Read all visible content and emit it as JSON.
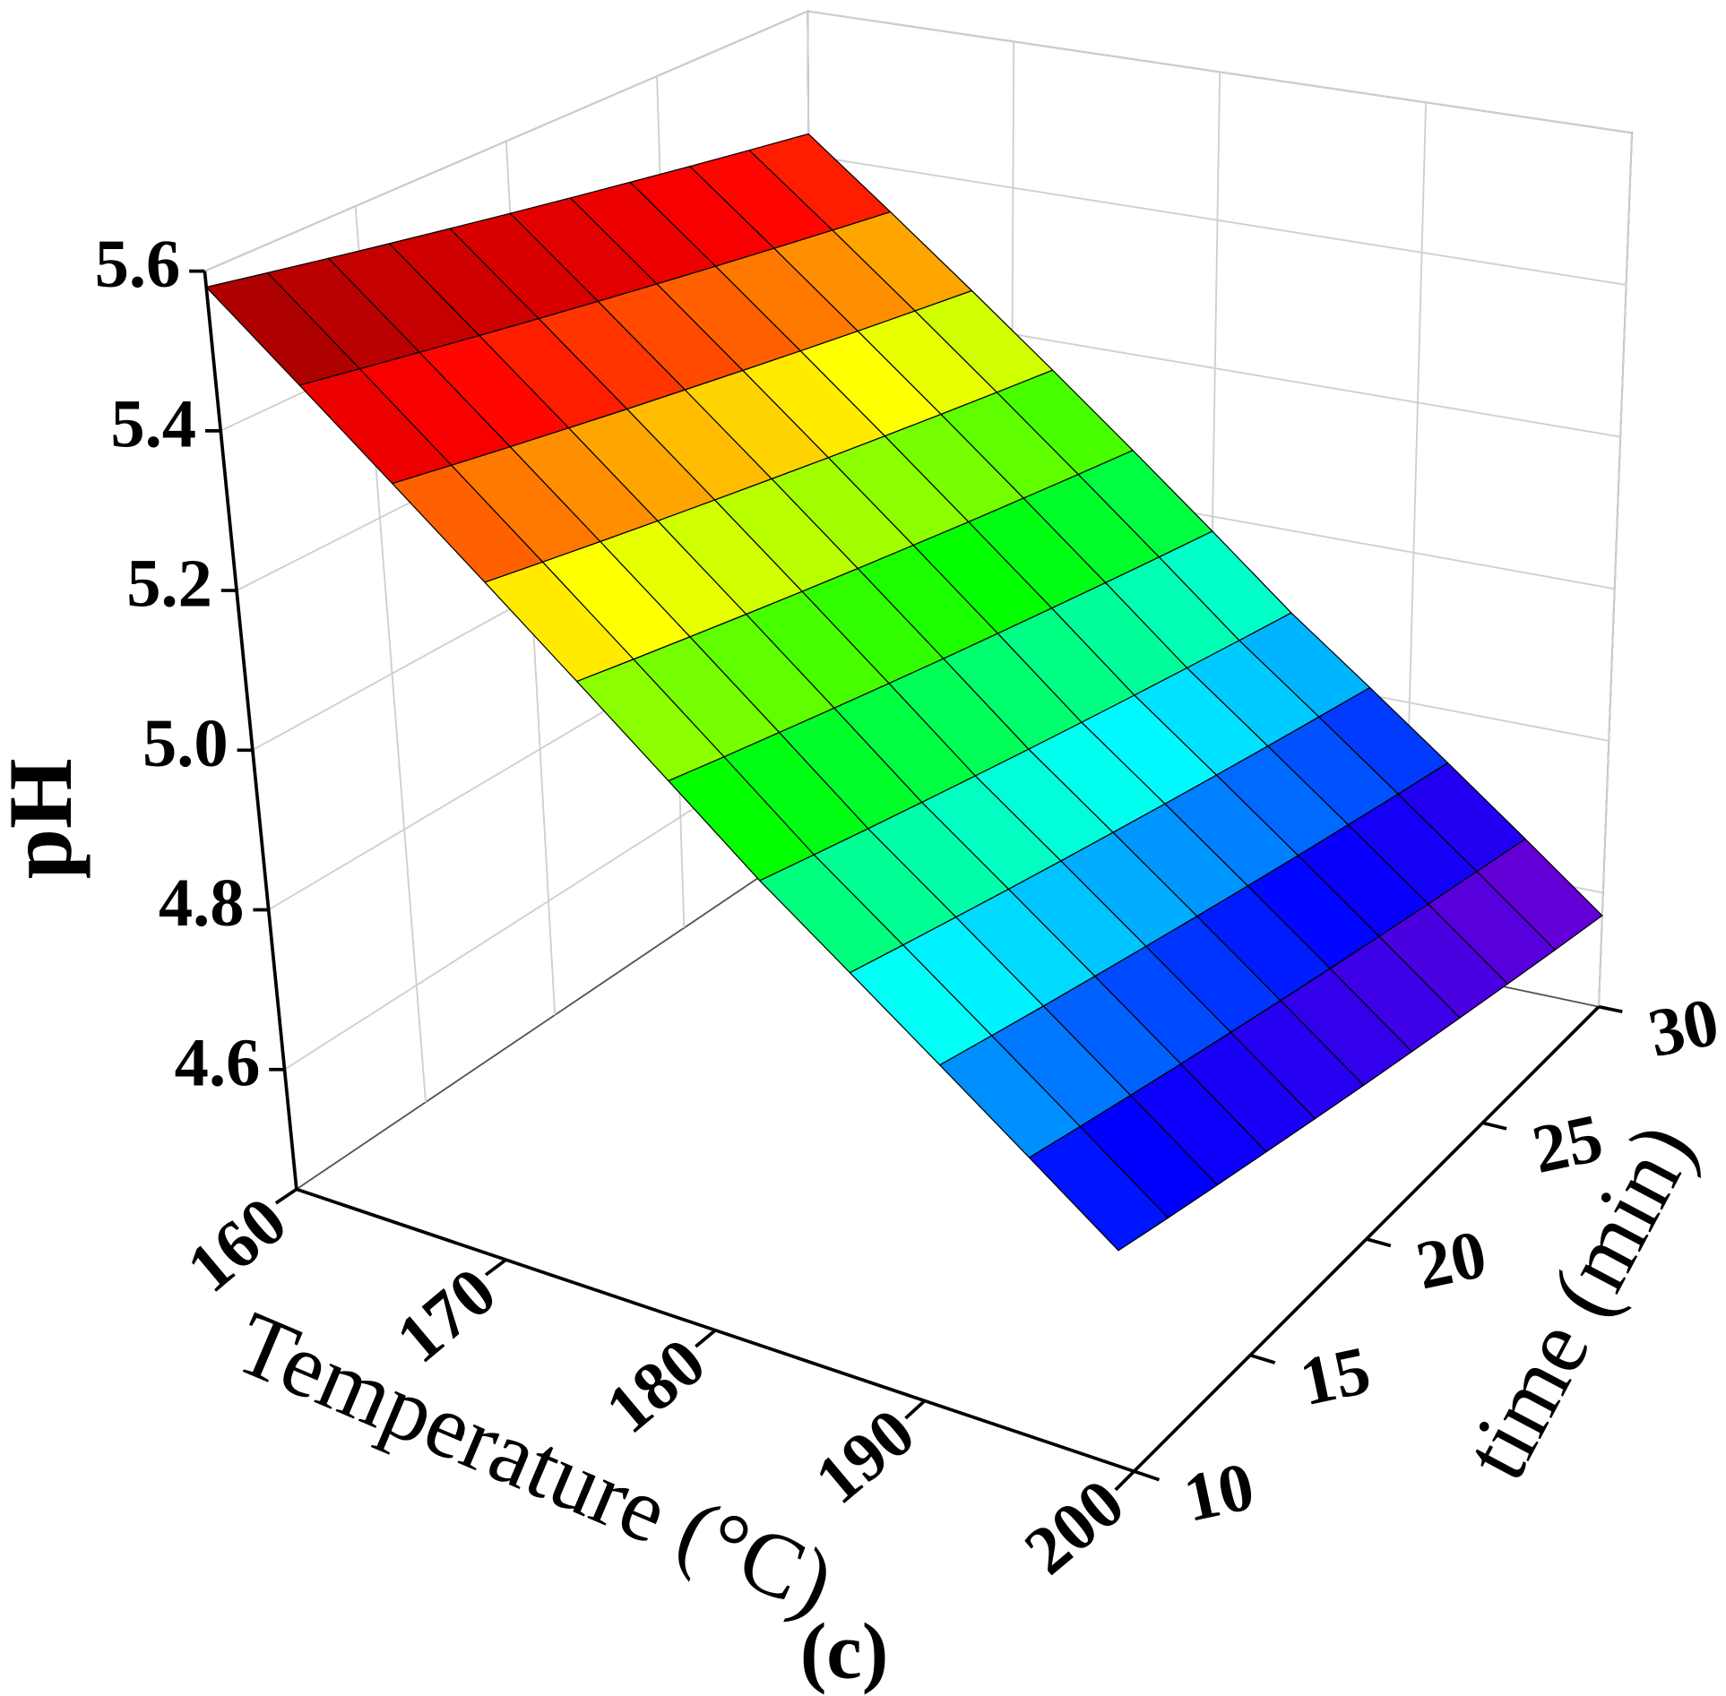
{
  "chart_data": {
    "type": "surface",
    "xlabel": "Temperature (°C)",
    "ylabel": "time (min)",
    "zlabel": "pH",
    "caption": "(c)",
    "x": [
      160,
      164,
      168,
      172,
      176,
      180,
      184,
      188,
      192,
      196,
      200
    ],
    "y": [
      10,
      12,
      14,
      16,
      18,
      20,
      22,
      24,
      26,
      28,
      30
    ],
    "z": [
      [
        5.58,
        5.565,
        5.55,
        5.535,
        5.52,
        5.505,
        5.49,
        5.475,
        5.46,
        5.445,
        5.43
      ],
      [
        5.49,
        5.475,
        5.46,
        5.445,
        5.43,
        5.415,
        5.4,
        5.385,
        5.37,
        5.355,
        5.34
      ],
      [
        5.4,
        5.385,
        5.37,
        5.355,
        5.34,
        5.325,
        5.31,
        5.295,
        5.28,
        5.265,
        5.25
      ],
      [
        5.31,
        5.295,
        5.28,
        5.265,
        5.25,
        5.235,
        5.22,
        5.205,
        5.19,
        5.175,
        5.16
      ],
      [
        5.22,
        5.205,
        5.19,
        5.175,
        5.16,
        5.145,
        5.13,
        5.115,
        5.1,
        5.085,
        5.07
      ],
      [
        5.13,
        5.115,
        5.1,
        5.085,
        5.07,
        5.055,
        5.04,
        5.025,
        5.01,
        4.995,
        4.98
      ],
      [
        5.04,
        5.025,
        5.01,
        4.995,
        4.98,
        4.965,
        4.95,
        4.935,
        4.92,
        4.905,
        4.89
      ],
      [
        4.96,
        4.945,
        4.93,
        4.915,
        4.9,
        4.885,
        4.87,
        4.855,
        4.84,
        4.825,
        4.81
      ],
      [
        4.88,
        4.865,
        4.85,
        4.835,
        4.82,
        4.805,
        4.79,
        4.775,
        4.76,
        4.745,
        4.73
      ],
      [
        4.8,
        4.785,
        4.77,
        4.755,
        4.74,
        4.725,
        4.71,
        4.695,
        4.68,
        4.665,
        4.65
      ],
      [
        4.72,
        4.705,
        4.69,
        4.675,
        4.66,
        4.645,
        4.63,
        4.615,
        4.6,
        4.585,
        4.57
      ]
    ],
    "xlim": [
      160,
      200
    ],
    "xticks": [
      160,
      170,
      180,
      190,
      200
    ],
    "ylim": [
      10,
      30
    ],
    "yticks": [
      10,
      15,
      20,
      25,
      30
    ],
    "zlim": [
      4.45,
      5.6
    ],
    "zticks": [
      4.6,
      4.8,
      {
        "value": 5,
        "label": "5.0"
      },
      5.2,
      5.4,
      5.6
    ],
    "grid": true,
    "colormap": [
      "#8a00c8",
      "#0000ff",
      "#00ffff",
      "#00ff00",
      "#ffff00",
      "#ff0000",
      "#8b0000"
    ]
  }
}
